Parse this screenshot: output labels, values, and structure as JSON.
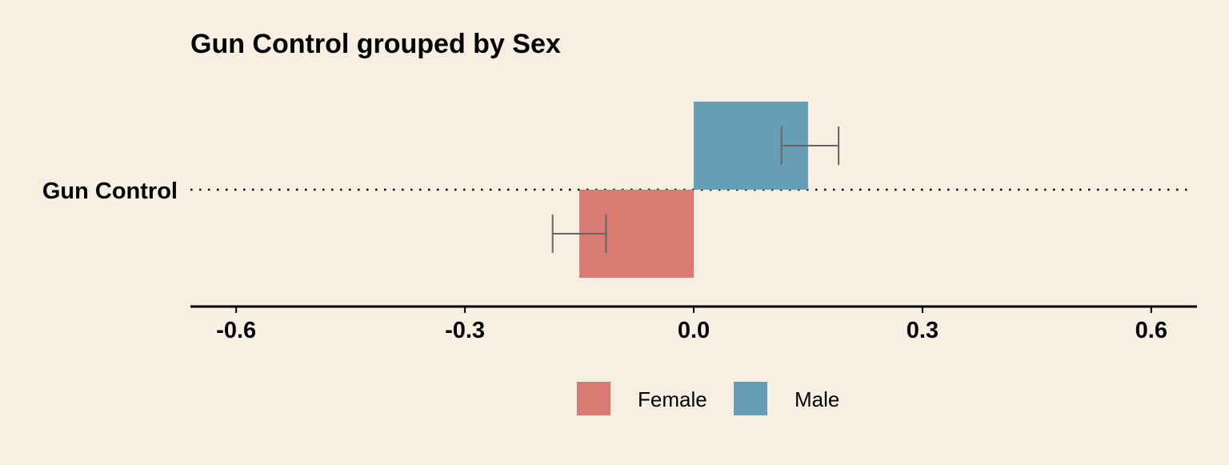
{
  "chart_data": {
    "type": "bar",
    "orientation": "horizontal",
    "title": "Gun Control grouped by Sex",
    "xlabel": "",
    "ylabel": "",
    "categories": [
      "Gun Control"
    ],
    "series": [
      {
        "name": "Female",
        "color": "#d97a73",
        "values": [
          -0.15
        ],
        "error": [
          [
            -0.185,
            -0.115
          ]
        ]
      },
      {
        "name": "Male",
        "color": "#659eb5",
        "values": [
          0.15
        ],
        "error": [
          [
            0.115,
            0.19
          ]
        ]
      }
    ],
    "xlim": [
      -0.66,
      0.66
    ],
    "xticks": [
      -0.6,
      -0.3,
      0.0,
      0.3,
      0.6
    ],
    "xtick_labels": [
      "-0.6",
      "-0.3",
      "0.0",
      "0.3",
      "0.6"
    ],
    "grid": false,
    "reference_line": "dotted line at each category",
    "legend_position": "bottom"
  },
  "colors": {
    "background": "#f7f0e2",
    "axis": "#000000",
    "error_bar": "#666666"
  }
}
